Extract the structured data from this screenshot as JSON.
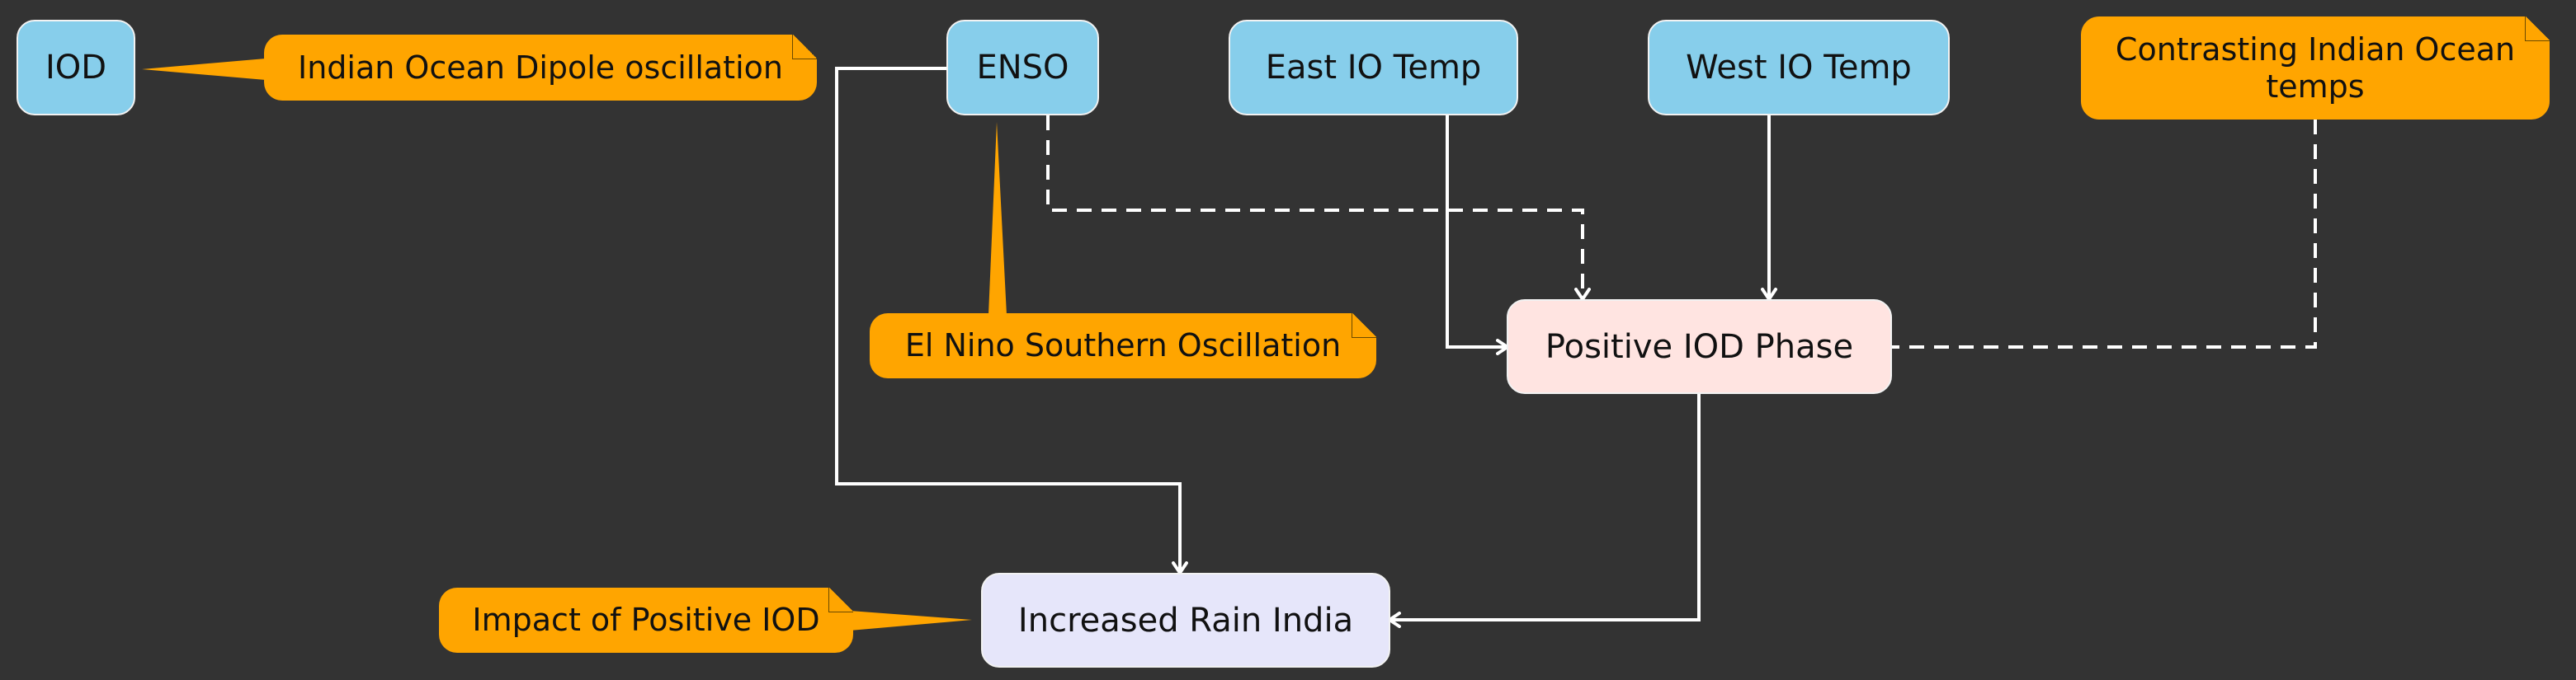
{
  "nodes": {
    "iod": "IOD",
    "enso": "ENSO",
    "east_io_temp": "East IO Temp",
    "west_io_temp": "West IO Temp",
    "positive_iod_phase": "Positive IOD Phase",
    "increased_rain_india": "Increased Rain India"
  },
  "notes": {
    "iod_note": "Indian Ocean Dipole oscillation",
    "enso_note": "El Nino Southern Oscillation",
    "temps_note": "Contrasting Indian Ocean temps",
    "rain_note": "Impact of Positive IOD"
  },
  "edges": [
    {
      "from": "enso",
      "to": "positive_iod_phase",
      "style": "dashed"
    },
    {
      "from": "east_io_temp",
      "to": "positive_iod_phase",
      "style": "solid"
    },
    {
      "from": "west_io_temp",
      "to": "positive_iod_phase",
      "style": "solid"
    },
    {
      "from": "enso",
      "to": "increased_rain_india",
      "style": "solid"
    },
    {
      "from": "positive_iod_phase",
      "to": "increased_rain_india",
      "style": "solid"
    }
  ],
  "colors": {
    "background": "#333333",
    "node_blue": "#87ceeb",
    "node_pink": "#ffe4e1",
    "node_lavender": "#e6e6fa",
    "note_orange": "#ffa500",
    "edge": "#ffffff"
  }
}
